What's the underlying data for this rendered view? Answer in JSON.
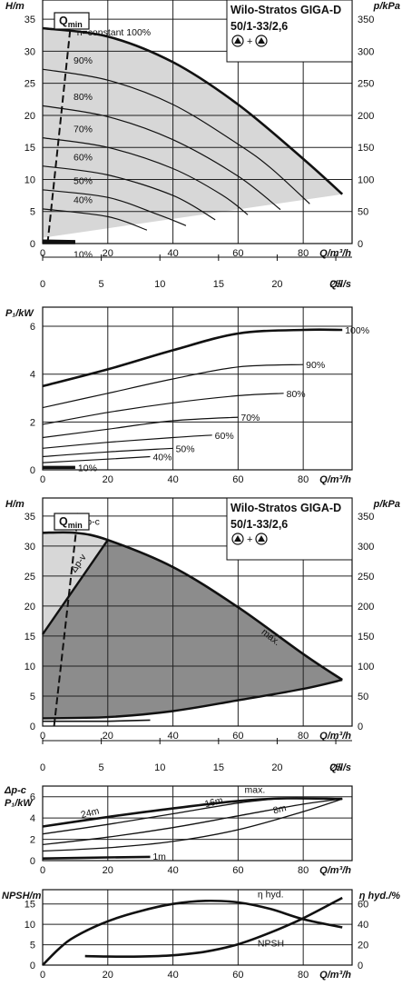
{
  "title": {
    "line1": "Wilo-Stratos GIGA-D",
    "line2": "50/1-33/2,6",
    "line3": "▲+▲"
  },
  "chart_data": [
    {
      "type": "line",
      "ylabel": "H/m",
      "ylabel_right": "p/kPa",
      "xlabel": "Q/m³/h",
      "xlabel_secondary": "Q/l/s",
      "xlim": [
        0,
        95
      ],
      "ylim": [
        0,
        38
      ],
      "y_ticks": [
        0,
        5,
        10,
        15,
        20,
        25,
        30,
        35
      ],
      "y_right_ticks": [
        0,
        50,
        100,
        150,
        200,
        250,
        300,
        350
      ],
      "x_ticks": [
        0,
        20,
        40,
        60,
        80
      ],
      "x_secondary_ticks": [
        0,
        5,
        10,
        15,
        20,
        25
      ],
      "qmin_label": "Qmin",
      "annotation": "n=constant 100%",
      "series": [
        {
          "name": "100%",
          "label": "",
          "x": [
            0,
            20,
            40,
            60,
            80,
            92
          ],
          "y": [
            33.6,
            32.3,
            28.3,
            21.7,
            13.2,
            7.7
          ]
        },
        {
          "name": "90%",
          "label": "90%",
          "x": [
            0,
            20,
            40,
            60,
            70,
            82
          ],
          "y": [
            27.2,
            25.5,
            21.7,
            15.5,
            11.8,
            6.2
          ]
        },
        {
          "name": "80%",
          "label": "80%",
          "x": [
            0,
            20,
            40,
            60,
            73
          ],
          "y": [
            21.5,
            19.8,
            16.2,
            10.5,
            5.3
          ]
        },
        {
          "name": "70%",
          "label": "70%",
          "x": [
            0,
            20,
            40,
            55,
            63
          ],
          "y": [
            16.5,
            15.0,
            11.7,
            7.6,
            4.5
          ]
        },
        {
          "name": "60%",
          "label": "60%",
          "x": [
            0,
            20,
            40,
            53
          ],
          "y": [
            12.1,
            10.7,
            7.5,
            3.7
          ]
        },
        {
          "name": "50%",
          "label": "50%",
          "x": [
            0,
            20,
            35,
            44
          ],
          "y": [
            8.4,
            7.2,
            4.6,
            2.8
          ]
        },
        {
          "name": "40%",
          "label": "40%",
          "x": [
            0,
            20,
            32
          ],
          "y": [
            5.4,
            4.2,
            2.1
          ]
        },
        {
          "name": "10%",
          "label": "10%",
          "x": [
            0,
            10
          ],
          "y": [
            0.4,
            0.3
          ]
        }
      ],
      "qmin_line": {
        "x": [
          1.5,
          9
        ],
        "y": [
          0,
          36
        ]
      }
    },
    {
      "type": "line",
      "ylabel": "P₁/kW",
      "xlabel": "Q/m³/h",
      "xlim": [
        0,
        95
      ],
      "ylim": [
        0,
        6.8
      ],
      "y_ticks": [
        0,
        2,
        4,
        6
      ],
      "x_ticks": [
        0,
        20,
        40,
        60,
        80
      ],
      "series": [
        {
          "name": "100%",
          "label": "100%",
          "x": [
            0,
            20,
            40,
            60,
            80,
            92
          ],
          "y": [
            3.5,
            4.2,
            5.0,
            5.7,
            5.85,
            5.85
          ]
        },
        {
          "name": "90%",
          "label": "90%",
          "x": [
            0,
            20,
            40,
            60,
            80
          ],
          "y": [
            2.6,
            3.2,
            3.8,
            4.3,
            4.4
          ]
        },
        {
          "name": "80%",
          "label": "80%",
          "x": [
            0,
            20,
            40,
            60,
            74
          ],
          "y": [
            1.9,
            2.4,
            2.8,
            3.1,
            3.2
          ]
        },
        {
          "name": "70%",
          "label": "70%",
          "x": [
            0,
            20,
            40,
            60
          ],
          "y": [
            1.35,
            1.7,
            2.05,
            2.2
          ]
        },
        {
          "name": "60%",
          "label": "60%",
          "x": [
            0,
            20,
            40,
            52
          ],
          "y": [
            0.9,
            1.15,
            1.35,
            1.45
          ]
        },
        {
          "name": "50%",
          "label": "50%",
          "x": [
            0,
            20,
            40
          ],
          "y": [
            0.55,
            0.75,
            0.9
          ]
        },
        {
          "name": "40%",
          "label": "40%",
          "x": [
            0,
            20,
            33
          ],
          "y": [
            0.3,
            0.45,
            0.55
          ]
        },
        {
          "name": "10%",
          "label": "10%",
          "x": [
            0,
            10
          ],
          "y": [
            0.1,
            0.1
          ]
        }
      ]
    },
    {
      "type": "area",
      "ylabel": "H/m",
      "ylabel_right": "p/kPa",
      "xlabel": "Q/m³/h",
      "xlabel_secondary": "Q/l/s",
      "xlim": [
        0,
        95
      ],
      "ylim": [
        0,
        38
      ],
      "y_ticks": [
        0,
        5,
        10,
        15,
        20,
        25,
        30,
        35
      ],
      "y_right_ticks": [
        0,
        50,
        100,
        150,
        200,
        250,
        300,
        350
      ],
      "x_ticks": [
        0,
        20,
        40,
        60,
        80
      ],
      "x_secondary_ticks": [
        0,
        5,
        10,
        15,
        20,
        25
      ],
      "qmin_label": "Qmin",
      "labels": {
        "dpc": "Δp-c",
        "dpv": "Δp-v",
        "max": "max."
      },
      "series": [
        {
          "name": "max",
          "x": [
            0,
            10,
            20,
            40,
            60,
            80,
            92
          ],
          "y": [
            32.2,
            32.2,
            31.0,
            26.5,
            19.8,
            12.0,
            7.7
          ]
        },
        {
          "name": "dpv",
          "x": [
            0,
            20
          ],
          "y": [
            15.3,
            31.0
          ]
        },
        {
          "name": "min",
          "x": [
            0,
            20,
            40,
            60,
            80,
            92
          ],
          "y": [
            1.3,
            1.5,
            2.5,
            4.3,
            6.2,
            7.7
          ]
        },
        {
          "name": "min-lower",
          "x": [
            0,
            20,
            33
          ],
          "y": [
            0.8,
            0.8,
            1.0
          ]
        }
      ],
      "qmin_line": {
        "x": [
          3.5,
          11
        ],
        "y": [
          0,
          36
        ]
      }
    },
    {
      "type": "line",
      "ylabel": "Δp-c",
      "ylabel2": "P₁/kW",
      "xlabel": "Q/m³/h",
      "xlim": [
        0,
        95
      ],
      "ylim": [
        0,
        7
      ],
      "y_ticks": [
        0,
        2,
        4,
        6
      ],
      "x_ticks": [
        0,
        20,
        40,
        60,
        80
      ],
      "series": [
        {
          "name": "max.",
          "label": "max.",
          "x": [
            0,
            20,
            40,
            60,
            75,
            92
          ],
          "y": [
            3.2,
            4.1,
            4.9,
            5.6,
            5.85,
            5.8
          ]
        },
        {
          "name": "24m",
          "label": "24m",
          "x": [
            0,
            20,
            40,
            60,
            75,
            92
          ],
          "y": [
            2.5,
            3.4,
            4.4,
            5.4,
            5.85,
            5.8
          ]
        },
        {
          "name": "16m",
          "label": "16m",
          "x": [
            0,
            20,
            40,
            60,
            80,
            92
          ],
          "y": [
            1.5,
            2.2,
            3.1,
            4.2,
            5.3,
            5.8
          ]
        },
        {
          "name": "8m",
          "label": "8m",
          "x": [
            0,
            20,
            40,
            60,
            80,
            92
          ],
          "y": [
            0.9,
            1.2,
            1.8,
            2.9,
            4.6,
            5.8
          ]
        },
        {
          "name": "1m",
          "label": "1m",
          "x": [
            0,
            20,
            33
          ],
          "y": [
            0.2,
            0.3,
            0.35
          ]
        }
      ]
    },
    {
      "type": "line",
      "ylabel": "NPSH/m",
      "ylabel_right": "η hyd./%",
      "xlabel": "Q/m³/h",
      "xlim": [
        0,
        95
      ],
      "ylim": [
        0,
        18.5
      ],
      "y_ticks": [
        0,
        5,
        10,
        15
      ],
      "y_right_ticks": [
        0,
        20,
        40,
        60
      ],
      "x_ticks": [
        0,
        20,
        40,
        60,
        80
      ],
      "series": [
        {
          "name": "η hyd.",
          "label": "η hyd.",
          "axis": "right",
          "x": [
            0,
            5,
            10,
            20,
            30,
            40,
            50,
            60,
            70,
            80,
            92
          ],
          "y": [
            0,
            16,
            28,
            43,
            53,
            60,
            63,
            61.5,
            55,
            45,
            37
          ]
        },
        {
          "name": "NPSH",
          "label": "NPSH",
          "axis": "left",
          "x": [
            13,
            20,
            30,
            40,
            50,
            60,
            70,
            80,
            92
          ],
          "y": [
            2.2,
            2.1,
            2.1,
            2.4,
            3.3,
            5.1,
            8.0,
            11.5,
            16.5
          ]
        }
      ]
    }
  ]
}
